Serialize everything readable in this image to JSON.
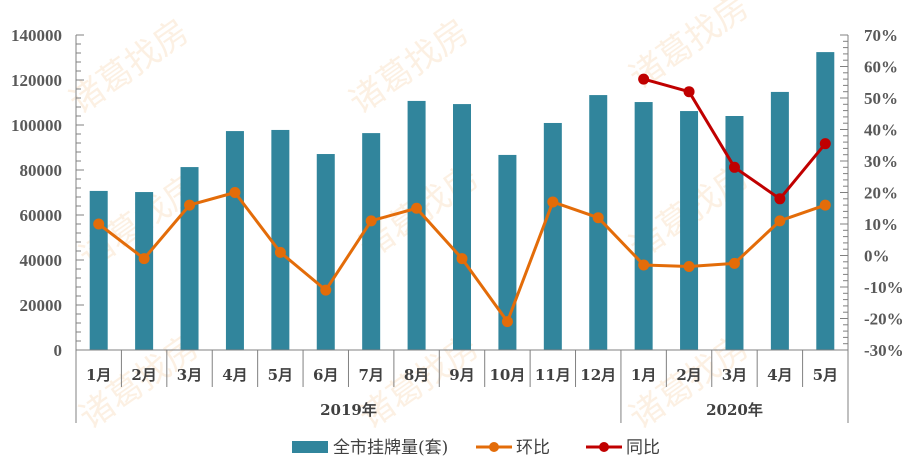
{
  "chart_data": {
    "type": "bar+line",
    "title": "",
    "watermark": "诸葛找房",
    "categories": [
      "1月",
      "2月",
      "3月",
      "4月",
      "5月",
      "6月",
      "7月",
      "8月",
      "9月",
      "10月",
      "11月",
      "12月",
      "1月",
      "2月",
      "3月",
      "4月",
      "5月"
    ],
    "groups": [
      {
        "label": "2019年",
        "start": 0,
        "end": 11
      },
      {
        "label": "2020年",
        "start": 12,
        "end": 16
      }
    ],
    "series": [
      {
        "name": "全市挂牌量(套)",
        "type": "bar",
        "axis": "left",
        "color": "#31859C",
        "values": [
          70700,
          70200,
          81300,
          97300,
          97800,
          87100,
          96400,
          110700,
          109300,
          86700,
          100900,
          113300,
          110200,
          106200,
          104000,
          114700,
          132400
        ]
      },
      {
        "name": "环比",
        "type": "line",
        "axis": "right",
        "color": "#E36C09",
        "values": [
          10,
          -1,
          16,
          20,
          1,
          -11,
          11,
          15,
          -1,
          -21,
          17,
          12,
          -3,
          -3.5,
          -2.5,
          11,
          16
        ]
      },
      {
        "name": "同比",
        "type": "line",
        "axis": "right",
        "color": "#C00000",
        "values": [
          null,
          null,
          null,
          null,
          null,
          null,
          null,
          null,
          null,
          null,
          null,
          null,
          56,
          52,
          28,
          18,
          35.5
        ]
      }
    ],
    "left_axis": {
      "min": 0,
      "max": 140000,
      "step": 20000,
      "ticks": [
        "0",
        "20000",
        "40000",
        "60000",
        "80000",
        "100000",
        "120000",
        "140000"
      ]
    },
    "right_axis": {
      "min": -30,
      "max": 70,
      "step": 10,
      "ticks": [
        "-30%",
        "-20%",
        "-10%",
        "0%",
        "10%",
        "20%",
        "30%",
        "40%",
        "50%",
        "60%",
        "70%"
      ]
    },
    "xlabel": "",
    "ylabel": "",
    "grid": false,
    "legend_position": "bottom"
  },
  "legend": [
    {
      "label": "全市挂牌量(套)",
      "kind": "bar",
      "color": "#31859C"
    },
    {
      "label": "环比",
      "kind": "line",
      "color": "#E36C09"
    },
    {
      "label": "同比",
      "kind": "line",
      "color": "#C00000"
    }
  ]
}
